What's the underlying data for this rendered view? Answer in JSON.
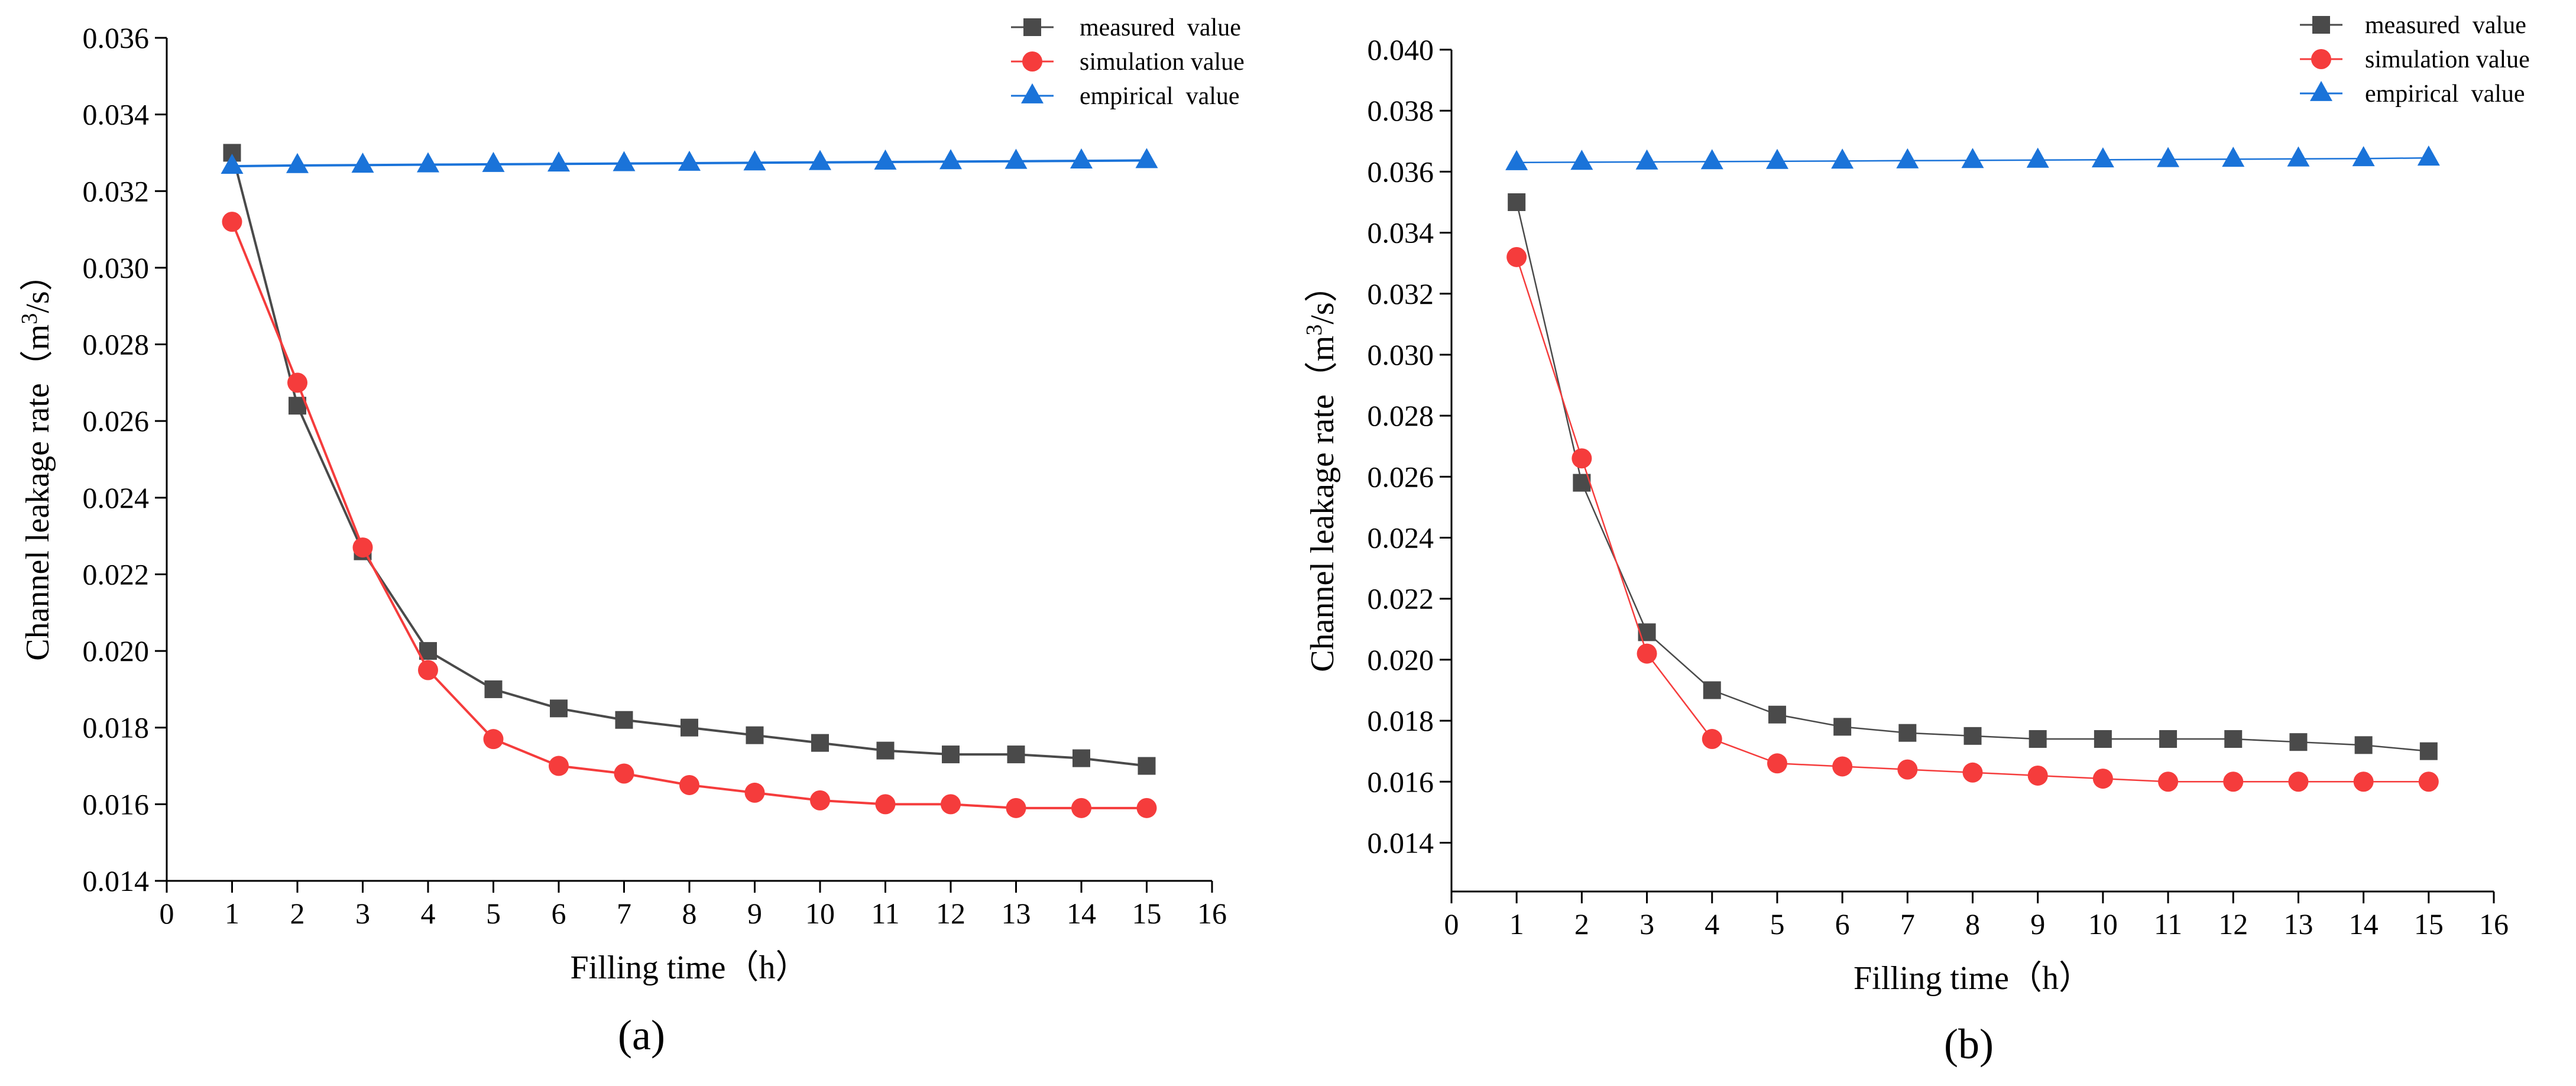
{
  "colors": {
    "measured": "#4a4a4a",
    "simulation": "#f53c3c",
    "empirical": "#1a73d9",
    "axis": "#000000"
  },
  "chart_data": [
    {
      "type": "line",
      "caption": "(a)",
      "xlabel": "Filling time（h）",
      "ylabel_main": "Channel leakage rate（m",
      "ylabel_sup": "3",
      "ylabel_tail": "/s）",
      "xlim": [
        0,
        16
      ],
      "ylim": [
        0.014,
        0.036
      ],
      "x_ticks": [
        0,
        1,
        2,
        3,
        4,
        5,
        6,
        7,
        8,
        9,
        10,
        11,
        12,
        13,
        14,
        15,
        16
      ],
      "x_tick_labels": [
        "0",
        "1",
        "2",
        "3",
        "4",
        "5",
        "6",
        "7",
        "8",
        "9",
        "10",
        "11",
        "12",
        "13",
        "14",
        "15",
        "16"
      ],
      "y_ticks": [
        0.014,
        0.016,
        0.018,
        0.02,
        0.022,
        0.024,
        0.026,
        0.028,
        0.03,
        0.032,
        0.034,
        0.036
      ],
      "y_tick_labels": [
        "0.014",
        "0.016",
        "0.018",
        "0.020",
        "0.022",
        "0.024",
        "0.026",
        "0.028",
        "0.030",
        "0.032",
        "0.034",
        "0.036"
      ],
      "legend_position": "top-right",
      "x": [
        1,
        2,
        3,
        4,
        5,
        6,
        7,
        8,
        9,
        10,
        11,
        12,
        13,
        14,
        15
      ],
      "series": [
        {
          "key": "measured",
          "name": "measured  value",
          "marker": "square",
          "values": [
            0.033,
            0.0264,
            0.0226,
            0.02,
            0.019,
            0.0185,
            0.0182,
            0.018,
            0.0178,
            0.0176,
            0.0174,
            0.0173,
            0.0173,
            0.0172,
            0.017
          ]
        },
        {
          "key": "simulation",
          "name": "simulation value",
          "marker": "circle",
          "values": [
            0.0312,
            0.027,
            0.0227,
            0.0195,
            0.0177,
            0.017,
            0.0168,
            0.0165,
            0.0163,
            0.0161,
            0.016,
            0.016,
            0.0159,
            0.0159,
            0.0159
          ]
        },
        {
          "key": "empirical",
          "name": "empirical  value",
          "marker": "triangle",
          "values": [
            0.03265,
            0.03267,
            0.03268,
            0.03269,
            0.0327,
            0.03271,
            0.03272,
            0.03273,
            0.03274,
            0.03275,
            0.03276,
            0.03277,
            0.03278,
            0.03279,
            0.0328
          ]
        }
      ]
    },
    {
      "type": "line",
      "caption": "(b)",
      "xlabel": "Filling time（h）",
      "ylabel_main": "Channel leakage rate（m",
      "ylabel_sup": "3",
      "ylabel_tail": "/s）",
      "xlim": [
        0,
        16
      ],
      "ylim": [
        0.0124,
        0.04
      ],
      "x_ticks": [
        0,
        1,
        2,
        3,
        4,
        5,
        6,
        7,
        8,
        9,
        10,
        11,
        12,
        13,
        14,
        15,
        16
      ],
      "x_tick_labels": [
        "0",
        "1",
        "2",
        "3",
        "4",
        "5",
        "6",
        "7",
        "8",
        "9",
        "10",
        "11",
        "12",
        "13",
        "14",
        "15",
        "16"
      ],
      "y_ticks": [
        0.014,
        0.016,
        0.018,
        0.02,
        0.022,
        0.024,
        0.026,
        0.028,
        0.03,
        0.032,
        0.034,
        0.036,
        0.038,
        0.04
      ],
      "y_tick_labels": [
        "0.014",
        "0.016",
        "0.018",
        "0.020",
        "0.022",
        "0.024",
        "0.026",
        "0.028",
        "0.030",
        "0.032",
        "0.034",
        "0.036",
        "0.038",
        "0.040"
      ],
      "legend_position": "top-right",
      "x": [
        1,
        2,
        3,
        4,
        5,
        6,
        7,
        8,
        9,
        10,
        11,
        12,
        13,
        14,
        15
      ],
      "series": [
        {
          "key": "measured",
          "name": "measured  value",
          "marker": "square",
          "values": [
            0.035,
            0.0258,
            0.0209,
            0.019,
            0.0182,
            0.0178,
            0.0176,
            0.0175,
            0.0174,
            0.0174,
            0.0174,
            0.0174,
            0.0173,
            0.0172,
            0.017
          ]
        },
        {
          "key": "simulation",
          "name": "simulation value",
          "marker": "circle",
          "values": [
            0.0332,
            0.0266,
            0.0202,
            0.0174,
            0.0166,
            0.0165,
            0.0164,
            0.0163,
            0.0162,
            0.0161,
            0.016,
            0.016,
            0.016,
            0.016,
            0.016
          ]
        },
        {
          "key": "empirical",
          "name": "empirical  value",
          "marker": "triangle",
          "values": [
            0.0363,
            0.03631,
            0.03632,
            0.03633,
            0.03634,
            0.03635,
            0.03636,
            0.03637,
            0.03638,
            0.03639,
            0.0364,
            0.03641,
            0.03642,
            0.03643,
            0.03645
          ]
        }
      ]
    }
  ]
}
